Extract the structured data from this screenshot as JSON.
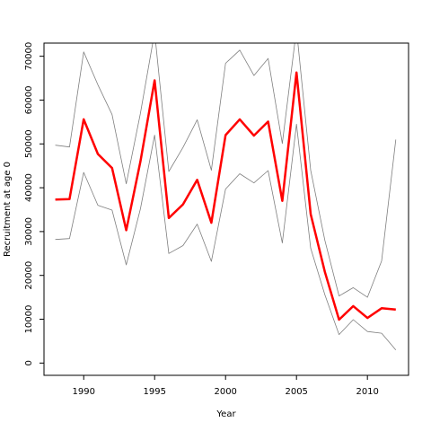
{
  "chart_data": {
    "type": "line",
    "title": "",
    "xlabel": "Year",
    "ylabel": "Recruitment at age 0",
    "xlim": [
      1987.2,
      2012.9
    ],
    "ylim": [
      -2800,
      73000
    ],
    "x_ticks": [
      1990,
      1995,
      2000,
      2005,
      2010
    ],
    "y_ticks": [
      0,
      10000,
      20000,
      30000,
      40000,
      50000,
      60000,
      70000
    ],
    "x": [
      1988,
      1989,
      1990,
      1991,
      1992,
      1993,
      1994,
      1995,
      1996,
      1997,
      1998,
      1999,
      2000,
      2001,
      2002,
      2003,
      2004,
      2005,
      2006,
      2007,
      2008,
      2009,
      2010,
      2011,
      2012
    ],
    "series": [
      {
        "role": "estimate",
        "color": "#ff0000",
        "values": [
          37300,
          37400,
          55600,
          47700,
          44500,
          30300,
          46000,
          64500,
          33100,
          36200,
          41800,
          32000,
          52000,
          55600,
          51900,
          55100,
          37000,
          66300,
          34000,
          20800,
          9900,
          13000,
          10300,
          12500,
          12200
        ]
      },
      {
        "role": "upper",
        "color": "#7f7f7f",
        "values": [
          49700,
          49300,
          71000,
          63500,
          56700,
          40900,
          57000,
          75500,
          43700,
          49200,
          55500,
          44000,
          68400,
          71400,
          65600,
          69500,
          50100,
          76200,
          44000,
          28000,
          15300,
          17200,
          15000,
          23300,
          51000
        ]
      },
      {
        "role": "lower",
        "color": "#7f7f7f",
        "values": [
          28200,
          28400,
          43500,
          36000,
          34900,
          22400,
          35200,
          52000,
          25000,
          26800,
          31700,
          23200,
          39700,
          43200,
          41100,
          43900,
          27400,
          54500,
          26200,
          15600,
          6500,
          9900,
          7200,
          6800,
          3000
        ]
      }
    ]
  }
}
